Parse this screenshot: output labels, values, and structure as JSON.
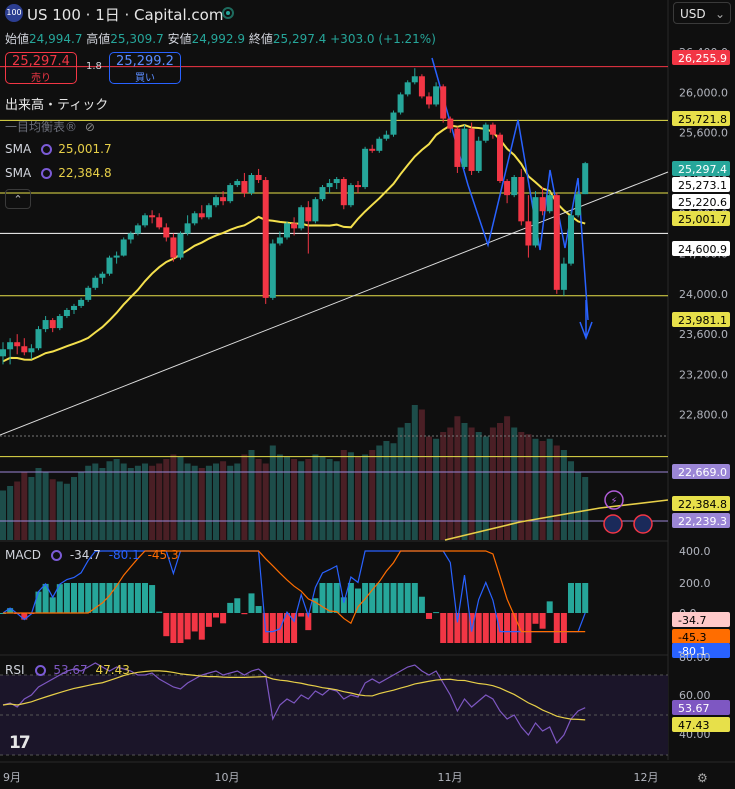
{
  "header": {
    "logo": "100",
    "title": "US 100 · 1日 · Capital.com",
    "ohlc": [
      {
        "k": "始値",
        "v": "24,994.7"
      },
      {
        "k": "高値",
        "v": "25,309.7"
      },
      {
        "k": "安値",
        "v": "24,992.9"
      },
      {
        "k": "終値",
        "v": "25,297.4"
      },
      {
        "k": "",
        "v": "+303.0 (+1.21%)"
      }
    ],
    "sell_price": "25,297.4",
    "sell_label": "売り",
    "spread": "1.8",
    "buy_price": "25,299.2",
    "buy_label": "買い",
    "currency": "USD"
  },
  "legend": {
    "volume": "出来高・ティック",
    "ichimoku": "一目均衡表®",
    "sma1_label": "SMA",
    "sma1_value": "25,001.7",
    "sma2_label": "SMA",
    "sma2_value": "22,384.8",
    "collapse": "⌃"
  },
  "price_tags": [
    {
      "text": "26,255.9",
      "value": 26255.9,
      "bg": "#f23645",
      "fg": "#ffffff"
    },
    {
      "text": "25,721.8",
      "value": 25721.8,
      "bg": "#e7e04a",
      "fg": "#000000"
    },
    {
      "text": "25,297.4",
      "value": 25297.4,
      "bg": "#26a69a",
      "fg": "#ffffff"
    },
    {
      "text": "25,273.1",
      "value": 25273.1,
      "bg": "#ffffff",
      "fg": "#000000"
    },
    {
      "text": "25,220.6",
      "value": 25220.6,
      "bg": "#ffffff",
      "fg": "#000000"
    },
    {
      "text": "25,001.7",
      "value": 25001.7,
      "bg": "#e7e04a",
      "fg": "#000000"
    },
    {
      "text": "24,600.9",
      "value": 24600.9,
      "bg": "#ffffff",
      "fg": "#000000"
    },
    {
      "text": "23,981.1",
      "value": 23981.1,
      "bg": "#e7e04a",
      "fg": "#000000"
    },
    {
      "text": "22,669.0",
      "value": 22669.0,
      "bg": "#9b86d6",
      "fg": "#ffffff"
    },
    {
      "text": "22,384.8",
      "value": 22384.8,
      "bg": "#e7e04a",
      "fg": "#000000"
    },
    {
      "text": "22,239.3",
      "value": 22239.3,
      "bg": "#9b86d6",
      "fg": "#ffffff"
    }
  ],
  "macd": {
    "label": "MACD",
    "v1": "-34.7",
    "v2": "-80.1",
    "v3": "-45.3",
    "scale": [
      "400.0",
      "200.0",
      "0.0"
    ],
    "tags": [
      "-34.7",
      "-45.3",
      "-80.1"
    ]
  },
  "rsi": {
    "label": "RSI",
    "v1": "53.67",
    "v2": "47.43",
    "scale": [
      "80.00",
      "60.00",
      "40.00"
    ],
    "tags": [
      "53.67",
      "47.43"
    ]
  },
  "xaxis": [
    "9月",
    "10月",
    "11月",
    "12月"
  ],
  "chart_data": {
    "type": "candlestick",
    "title": "US 100 · 1日 · Capital.com",
    "price_axis": [
      "26,400.0",
      "26,000.0",
      "25,600.0",
      "25,200.0",
      "24,800.0",
      "24,400.0",
      "24,000.0",
      "23,600.0",
      "23,200.0",
      "22,800.0"
    ],
    "ylim": [
      22450,
      26520
    ],
    "candles": [
      [
        23380,
        23520,
        23300,
        23450
      ],
      [
        23450,
        23560,
        23300,
        23520
      ],
      [
        23520,
        23600,
        23400,
        23480
      ],
      [
        23480,
        23560,
        23390,
        23420
      ],
      [
        23420,
        23500,
        23350,
        23460
      ],
      [
        23460,
        23680,
        23440,
        23650
      ],
      [
        23650,
        23780,
        23620,
        23740
      ],
      [
        23740,
        23760,
        23620,
        23660
      ],
      [
        23660,
        23800,
        23640,
        23780
      ],
      [
        23780,
        23860,
        23760,
        23840
      ],
      [
        23840,
        23900,
        23800,
        23880
      ],
      [
        23880,
        23960,
        23860,
        23940
      ],
      [
        23940,
        24080,
        23920,
        24060
      ],
      [
        24060,
        24180,
        24040,
        24160
      ],
      [
        24160,
        24220,
        24100,
        24200
      ],
      [
        24200,
        24380,
        24180,
        24360
      ],
      [
        24360,
        24420,
        24300,
        24380
      ],
      [
        24380,
        24560,
        24370,
        24540
      ],
      [
        24540,
        24620,
        24500,
        24600
      ],
      [
        24600,
        24700,
        24580,
        24680
      ],
      [
        24680,
        24800,
        24660,
        24780
      ],
      [
        24780,
        24830,
        24700,
        24760
      ],
      [
        24760,
        24800,
        24640,
        24660
      ],
      [
        24660,
        24700,
        24520,
        24560
      ],
      [
        24560,
        24600,
        24320,
        24360
      ],
      [
        24360,
        24620,
        24340,
        24600
      ],
      [
        24600,
        24780,
        24580,
        24700
      ],
      [
        24700,
        24820,
        24680,
        24800
      ],
      [
        24800,
        24880,
        24740,
        24760
      ],
      [
        24760,
        24900,
        24740,
        24880
      ],
      [
        24880,
        24980,
        24860,
        24960
      ],
      [
        24960,
        25020,
        24880,
        24920
      ],
      [
        24920,
        25100,
        24900,
        25080
      ],
      [
        25080,
        25140,
        25060,
        25120
      ],
      [
        25120,
        25200,
        24960,
        25000
      ],
      [
        25000,
        25200,
        24980,
        25180
      ],
      [
        25180,
        25240,
        25100,
        25130
      ],
      [
        25130,
        25160,
        23900,
        23960
      ],
      [
        23960,
        24540,
        23940,
        24500
      ],
      [
        24500,
        24620,
        24480,
        24560
      ],
      [
        24560,
        24720,
        24540,
        24700
      ],
      [
        24700,
        24760,
        24580,
        24650
      ],
      [
        24650,
        24880,
        24630,
        24860
      ],
      [
        24860,
        24920,
        24400,
        24720
      ],
      [
        24720,
        24960,
        24700,
        24940
      ],
      [
        24940,
        25080,
        24920,
        25060
      ],
      [
        25060,
        25140,
        25000,
        25100
      ],
      [
        25100,
        25160,
        25040,
        25140
      ],
      [
        25140,
        25160,
        24840,
        24880
      ],
      [
        24880,
        25100,
        24860,
        25080
      ],
      [
        25080,
        25120,
        25000,
        25060
      ],
      [
        25060,
        25460,
        25040,
        25440
      ],
      [
        25440,
        25480,
        25400,
        25420
      ],
      [
        25420,
        25560,
        25400,
        25540
      ],
      [
        25540,
        25620,
        25520,
        25580
      ],
      [
        25580,
        25820,
        25560,
        25800
      ],
      [
        25800,
        26000,
        25780,
        25980
      ],
      [
        25980,
        26120,
        25960,
        26100
      ],
      [
        26100,
        26240,
        26080,
        26160
      ],
      [
        26160,
        26180,
        25940,
        25960
      ],
      [
        25960,
        26000,
        25840,
        25880
      ],
      [
        25880,
        26100,
        25860,
        26060
      ],
      [
        26060,
        26080,
        25700,
        25740
      ],
      [
        25740,
        25760,
        25600,
        25640
      ],
      [
        25640,
        25660,
        25200,
        25260
      ],
      [
        25260,
        25680,
        25240,
        25640
      ],
      [
        25640,
        25700,
        25180,
        25220
      ],
      [
        25220,
        25560,
        25200,
        25520
      ],
      [
        25520,
        25700,
        25500,
        25680
      ],
      [
        25680,
        25700,
        25540,
        25580
      ],
      [
        25580,
        25600,
        25100,
        25120
      ],
      [
        25120,
        25140,
        24900,
        24980
      ],
      [
        24980,
        25180,
        24960,
        25160
      ],
      [
        25160,
        25240,
        24680,
        24720
      ],
      [
        24720,
        24980,
        24360,
        24480
      ],
      [
        24480,
        25020,
        24460,
        24960
      ],
      [
        24960,
        25060,
        24780,
        24820
      ],
      [
        24820,
        25020,
        24800,
        24980
      ],
      [
        24980,
        25000,
        24000,
        24040
      ],
      [
        24040,
        24360,
        23980,
        24300
      ],
      [
        24300,
        24820,
        24280,
        24780
      ],
      [
        24780,
        25020,
        24760,
        24990
      ],
      [
        24990,
        25310,
        24990,
        25297.4
      ]
    ],
    "volume": [
      22,
      24,
      26,
      30,
      28,
      32,
      30,
      27,
      26,
      25,
      28,
      30,
      33,
      34,
      32,
      35,
      36,
      34,
      32,
      33,
      34,
      33,
      34,
      36,
      38,
      37,
      34,
      33,
      32,
      33,
      34,
      35,
      33,
      34,
      38,
      40,
      36,
      34,
      42,
      38,
      37,
      36,
      35,
      36,
      38,
      37,
      36,
      35,
      40,
      39,
      37,
      38,
      40,
      42,
      44,
      43,
      50,
      52,
      60,
      58,
      46,
      45,
      48,
      50,
      55,
      52,
      50,
      48,
      46,
      50,
      52,
      55,
      50,
      48,
      47,
      45,
      44,
      45,
      42,
      40,
      35,
      30,
      28
    ],
    "sma_fast": "yellow",
    "sma_slow": "yellow",
    "rsi_values": [
      55,
      56,
      54,
      58,
      60,
      64,
      66,
      68,
      70,
      72,
      73,
      72,
      74,
      76,
      74,
      72,
      74,
      73,
      72,
      70,
      70,
      71,
      68,
      66,
      64,
      63,
      66,
      68,
      70,
      71,
      72,
      70,
      71,
      72,
      70,
      72,
      73,
      70,
      48,
      55,
      58,
      56,
      60,
      58,
      62,
      60,
      63,
      62,
      58,
      60,
      59,
      66,
      68,
      66,
      68,
      70,
      72,
      74,
      75,
      72,
      70,
      72,
      66,
      60,
      52,
      58,
      54,
      57,
      60,
      58,
      52,
      48,
      50,
      44,
      40,
      46,
      42,
      44,
      36,
      40,
      48,
      52,
      53.67
    ]
  }
}
